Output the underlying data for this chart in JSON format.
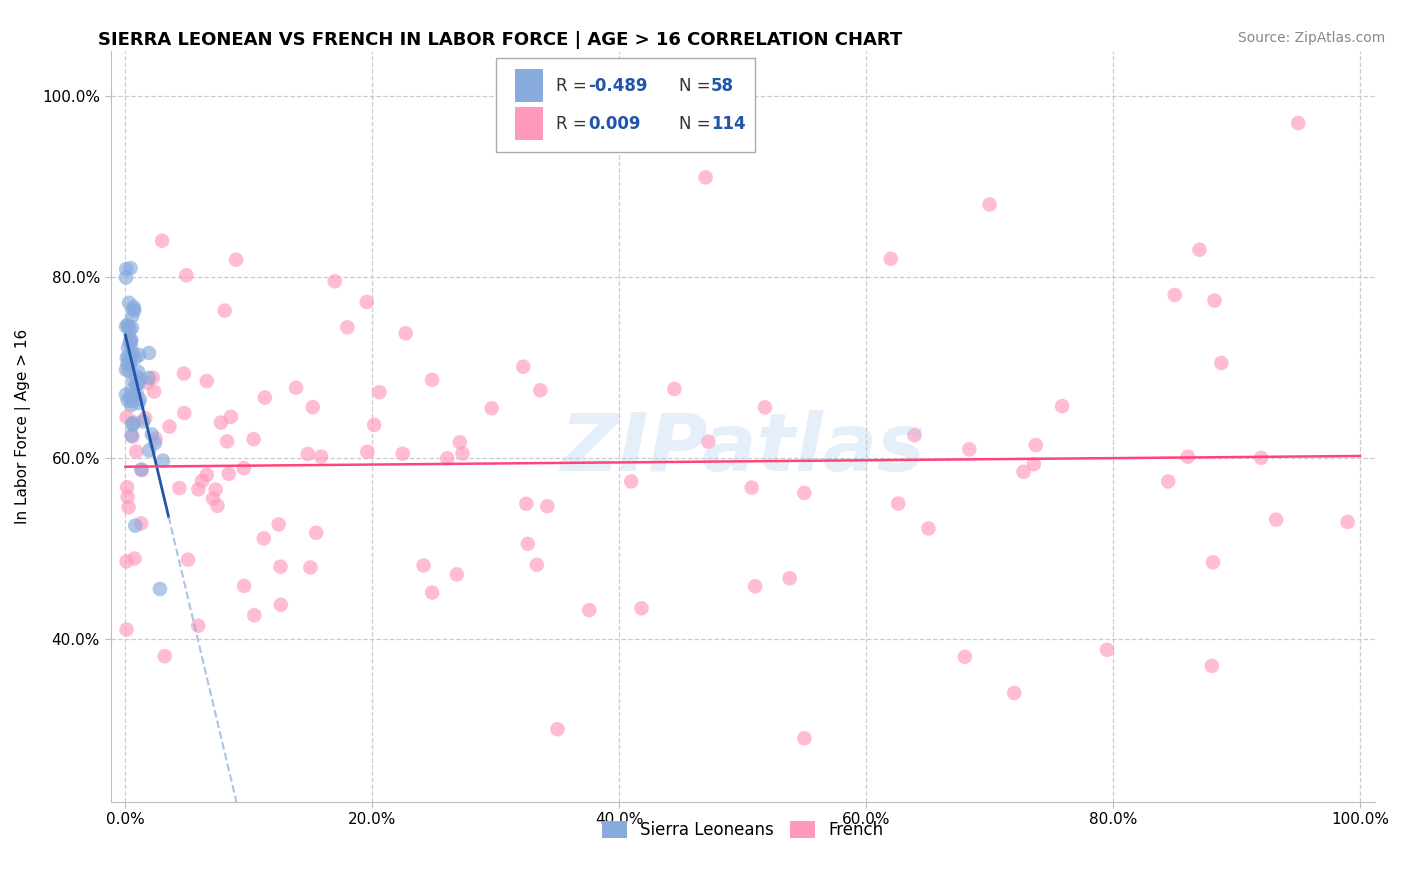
{
  "title": "SIERRA LEONEAN VS FRENCH IN LABOR FORCE | AGE > 16 CORRELATION CHART",
  "source_text": "Source: ZipAtlas.com",
  "ylabel": "In Labor Force | Age > 16",
  "xlim": [
    0.0,
    1.0
  ],
  "ylim": [
    0.22,
    1.05
  ],
  "xticks": [
    0.0,
    0.2,
    0.4,
    0.6,
    0.8,
    1.0
  ],
  "xticklabels": [
    "0.0%",
    "20.0%",
    "40.0%",
    "60.0%",
    "80.0%",
    "100.0%"
  ],
  "yticks": [
    0.4,
    0.6,
    0.8,
    1.0
  ],
  "yticklabels": [
    "40.0%",
    "60.0%",
    "80.0%",
    "100.0%"
  ],
  "blue_color": "#88AADD",
  "pink_color": "#FF99BB",
  "blue_line_color": "#2255AA",
  "pink_line_color": "#FF4477",
  "watermark": "ZIPatlas",
  "watermark_color": "#AACCEE",
  "legend_r1_label": "R = ",
  "legend_r1_val": "-0.489",
  "legend_n1_label": "N = ",
  "legend_n1_val": "58",
  "legend_r2_label": "R = ",
  "legend_r2_val": "0.009",
  "legend_n2_label": "N = ",
  "legend_n2_val": "114",
  "sl_label": "Sierra Leoneans",
  "fr_label": "French",
  "title_fontsize": 13,
  "tick_fontsize": 11,
  "ylabel_fontsize": 11,
  "legend_fontsize": 12,
  "source_fontsize": 10
}
